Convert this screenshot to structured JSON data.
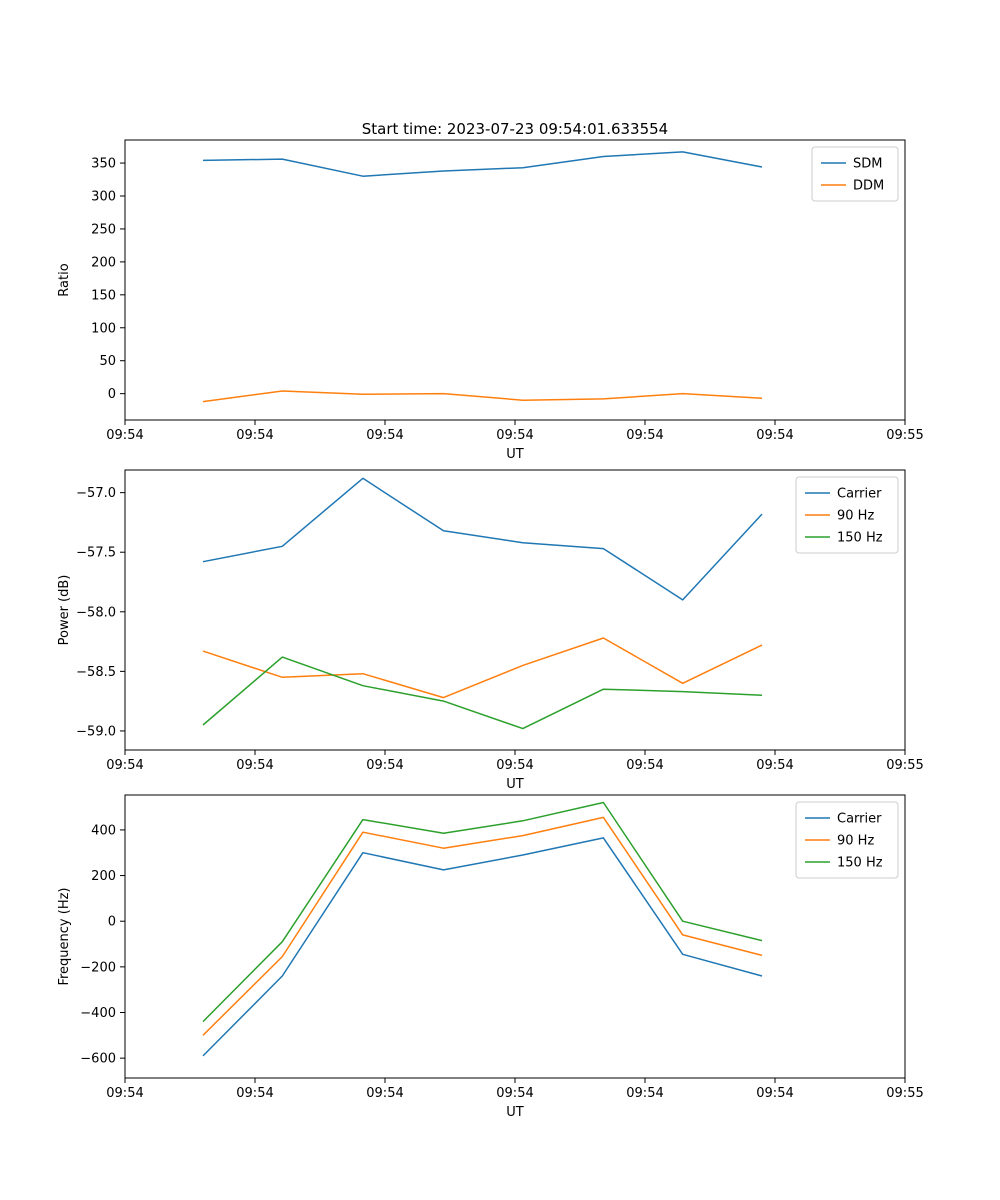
{
  "figure": {
    "title": "Start time: 2023-07-23 09:54:01.633554",
    "background": "#ffffff",
    "colors": {
      "blue": "#1f77b4",
      "orange": "#ff7f0e",
      "green": "#2ca02c"
    }
  },
  "chart_data": [
    {
      "type": "line",
      "title": "Start time: 2023-07-23 09:54:01.633554",
      "xlabel": "UT",
      "ylabel": "Ratio",
      "x_seconds": [
        6,
        12.1,
        18.3,
        24.5,
        30.6,
        36.8,
        42.9,
        49
      ],
      "xlim_seconds": [
        0,
        60
      ],
      "xtick_labels": [
        "09:54",
        "09:54",
        "09:54",
        "09:54",
        "09:54",
        "09:54",
        "09:55"
      ],
      "yticks": [
        0,
        50,
        100,
        150,
        200,
        250,
        300,
        350
      ],
      "ytick_labels": [
        "0",
        "50",
        "100",
        "150",
        "200",
        "250",
        "300",
        "350"
      ],
      "ylim": [
        -40,
        385
      ],
      "grid": false,
      "legend_position": "upper-right",
      "series": [
        {
          "name": "SDM",
          "color": "#1f77b4",
          "values": [
            354,
            356,
            330,
            338,
            343,
            360,
            367,
            344
          ]
        },
        {
          "name": "DDM",
          "color": "#ff7f0e",
          "values": [
            -12,
            4,
            -1,
            0,
            -10,
            -8,
            0,
            -7
          ]
        }
      ]
    },
    {
      "type": "line",
      "title": "",
      "xlabel": "UT",
      "ylabel": "Power (dB)",
      "x_seconds": [
        6,
        12.1,
        18.3,
        24.5,
        30.6,
        36.8,
        42.9,
        49
      ],
      "xlim_seconds": [
        0,
        60
      ],
      "xtick_labels": [
        "09:54",
        "09:54",
        "09:54",
        "09:54",
        "09:54",
        "09:54",
        "09:55"
      ],
      "yticks": [
        -59.0,
        -58.5,
        -58.0,
        -57.5,
        -57.0
      ],
      "ytick_labels": [
        "−59.0",
        "−58.5",
        "−58.0",
        "−57.5",
        "−57.0"
      ],
      "ylim": [
        -59.16,
        -56.81
      ],
      "grid": false,
      "legend_position": "upper-right",
      "series": [
        {
          "name": "Carrier",
          "color": "#1f77b4",
          "values": [
            -57.58,
            -57.45,
            -56.88,
            -57.32,
            -57.42,
            -57.47,
            -57.9,
            -57.18
          ]
        },
        {
          "name": "90 Hz",
          "color": "#ff7f0e",
          "values": [
            -58.33,
            -58.55,
            -58.52,
            -58.72,
            -58.45,
            -58.22,
            -58.6,
            -58.28
          ]
        },
        {
          "name": "150 Hz",
          "color": "#2ca02c",
          "values": [
            -58.95,
            -58.38,
            -58.62,
            -58.75,
            -58.98,
            -58.65,
            -58.67,
            -58.7
          ]
        }
      ]
    },
    {
      "type": "line",
      "title": "",
      "xlabel": "UT",
      "ylabel": "Frequency (Hz)",
      "x_seconds": [
        6,
        12.1,
        18.3,
        24.5,
        30.6,
        36.8,
        42.9,
        49
      ],
      "xlim_seconds": [
        0,
        60
      ],
      "xtick_labels": [
        "09:54",
        "09:54",
        "09:54",
        "09:54",
        "09:54",
        "09:54",
        "09:55"
      ],
      "yticks": [
        -600,
        -400,
        -200,
        0,
        200,
        400
      ],
      "ytick_labels": [
        "−600",
        "−400",
        "−200",
        "0",
        "200",
        "400"
      ],
      "ylim": [
        -687,
        553
      ],
      "grid": false,
      "legend_position": "upper-right",
      "series": [
        {
          "name": "Carrier",
          "color": "#1f77b4",
          "values": [
            -590,
            -240,
            300,
            225,
            290,
            365,
            -145,
            -240
          ]
        },
        {
          "name": "90 Hz",
          "color": "#ff7f0e",
          "values": [
            -500,
            -155,
            390,
            320,
            375,
            455,
            -60,
            -150
          ]
        },
        {
          "name": "150 Hz",
          "color": "#2ca02c",
          "values": [
            -440,
            -90,
            445,
            385,
            440,
            520,
            0,
            -85
          ]
        }
      ]
    }
  ]
}
